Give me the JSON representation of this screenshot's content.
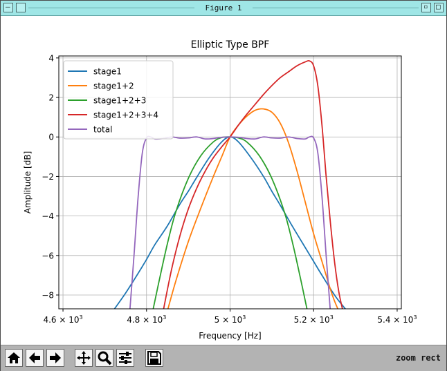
{
  "window": {
    "title": "Figure 1"
  },
  "toolbar": {
    "mode_text": "zoom rect",
    "buttons": [
      "home-icon",
      "back-arrow-icon",
      "forward-arrow-icon",
      "pan-move-icon",
      "zoom-magnifier-icon",
      "configure-subplots-icon",
      "save-floppy-icon"
    ]
  },
  "chart_data": {
    "type": "line",
    "title": "Elliptic Type BPF",
    "xlabel": "Frequency [Hz]",
    "ylabel": "Amplitude [dB]",
    "xlim": [
      4590,
      5410
    ],
    "ylim": [
      -8.7,
      4.1
    ],
    "grid": true,
    "legend_position": "top-left",
    "x_ticks": [
      {
        "value": 4600,
        "base": "4.6 × 10",
        "exp": "3"
      },
      {
        "value": 4800,
        "base": "4.8 × 10",
        "exp": "3"
      },
      {
        "value": 5000,
        "base": "5 × 10",
        "exp": "3"
      },
      {
        "value": 5200,
        "base": "5.2 × 10",
        "exp": "3"
      },
      {
        "value": 5400,
        "base": "5.4 × 10",
        "exp": "3"
      }
    ],
    "y_ticks": [
      {
        "value": 4,
        "label": "4"
      },
      {
        "value": 2,
        "label": "2"
      },
      {
        "value": 0,
        "label": "0"
      },
      {
        "value": -2,
        "label": "−2"
      },
      {
        "value": -4,
        "label": "−4"
      },
      {
        "value": -6,
        "label": "−6"
      },
      {
        "value": -8,
        "label": "−8"
      }
    ],
    "series": [
      {
        "name": "stage1",
        "color": "#1f77b4",
        "x": [
          4720,
          4750,
          4780,
          4800,
          4820,
          4850,
          4880,
          4900,
          4920,
          4950,
          4980,
          5000,
          5020,
          5050,
          5080,
          5100,
          5120,
          5150,
          5180,
          5200,
          5220,
          5250,
          5270,
          5280
        ],
        "y": [
          -8.8,
          -7.9,
          -6.9,
          -6.2,
          -5.45,
          -4.5,
          -3.4,
          -2.75,
          -2.05,
          -1.05,
          -0.25,
          0.0,
          -0.25,
          -1.05,
          -2.0,
          -2.75,
          -3.45,
          -4.55,
          -5.6,
          -6.3,
          -7.0,
          -8.0,
          -8.55,
          -8.8
        ]
      },
      {
        "name": "stage1+2",
        "color": "#ff7f0e",
        "x": [
          4850,
          4870,
          4900,
          4930,
          4960,
          4980,
          5000,
          5020,
          5040,
          5060,
          5080,
          5100,
          5120,
          5140,
          5160,
          5180,
          5200,
          5220,
          5240,
          5250,
          5260
        ],
        "y": [
          -8.8,
          -7.3,
          -5.3,
          -3.6,
          -2.0,
          -1.0,
          0.0,
          0.6,
          1.05,
          1.35,
          1.42,
          1.25,
          0.7,
          -0.3,
          -1.7,
          -3.3,
          -4.9,
          -6.3,
          -7.7,
          -8.3,
          -8.8
        ]
      },
      {
        "name": "stage1+2+3",
        "color": "#2ca02c",
        "x": [
          4815,
          4830,
          4850,
          4870,
          4900,
          4930,
          4960,
          4980,
          5000,
          5020,
          5040,
          5070,
          5100,
          5130,
          5150,
          5170,
          5185
        ],
        "y": [
          -8.8,
          -7.3,
          -5.4,
          -3.8,
          -2.1,
          -0.95,
          -0.25,
          -0.03,
          0.0,
          -0.05,
          -0.25,
          -0.95,
          -2.1,
          -3.8,
          -5.4,
          -7.3,
          -8.8
        ]
      },
      {
        "name": "stage1+2+3+4",
        "color": "#d62728",
        "x": [
          4840,
          4860,
          4880,
          4900,
          4920,
          4940,
          4960,
          4980,
          5000,
          5020,
          5040,
          5060,
          5080,
          5100,
          5120,
          5140,
          5160,
          5180,
          5190,
          5200,
          5210,
          5220,
          5230,
          5240,
          5250,
          5260,
          5270
        ],
        "y": [
          -8.8,
          -6.7,
          -5.0,
          -3.65,
          -2.6,
          -1.75,
          -1.05,
          -0.5,
          0.0,
          0.6,
          1.15,
          1.65,
          2.15,
          2.6,
          3.0,
          3.3,
          3.6,
          3.8,
          3.85,
          3.6,
          2.6,
          0.6,
          -2.0,
          -4.3,
          -6.3,
          -7.8,
          -8.8
        ]
      },
      {
        "name": "total",
        "color": "#9467bd",
        "x": [
          4760,
          4770,
          4780,
          4790,
          4800,
          4810,
          4820,
          4840,
          4860,
          4880,
          4900,
          4920,
          4940,
          4960,
          4980,
          5000,
          5020,
          5040,
          5060,
          5080,
          5100,
          5120,
          5140,
          5160,
          5180,
          5190,
          5200,
          5210,
          5220,
          5230,
          5240
        ],
        "y": [
          -8.8,
          -6.0,
          -3.0,
          -0.8,
          -0.05,
          0.0,
          -0.1,
          -0.08,
          0.0,
          -0.06,
          -0.05,
          0.0,
          -0.1,
          -0.08,
          -0.02,
          0.0,
          -0.02,
          -0.08,
          -0.1,
          0.0,
          -0.05,
          -0.06,
          0.0,
          -0.08,
          -0.1,
          0.0,
          -0.05,
          -0.8,
          -3.0,
          -6.0,
          -8.8
        ]
      }
    ]
  }
}
